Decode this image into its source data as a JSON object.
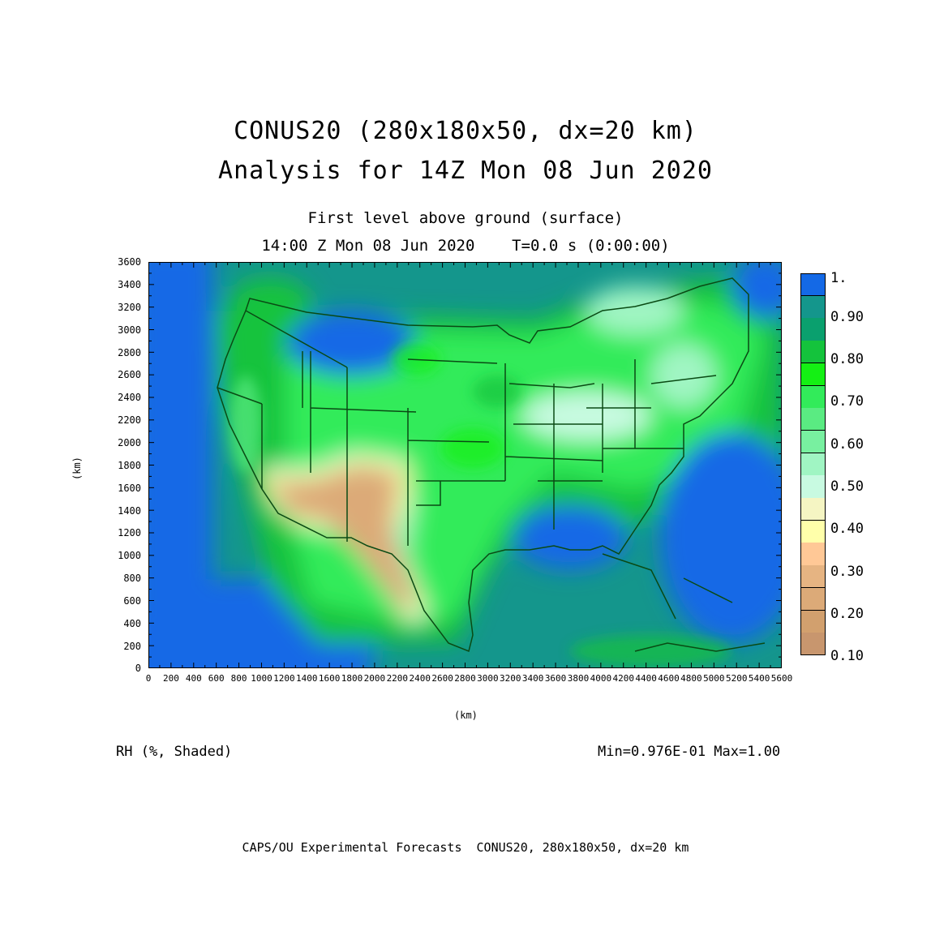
{
  "title_line1": "CONUS20 (280x180x50, dx=20 km)",
  "title_line2": "Analysis for 14Z Mon 08 Jun 2020",
  "subtitle_line1": "First level above ground (surface)",
  "subtitle_line2": "14:00 Z Mon 08 Jun 2020    T=0.0 s (0:00:00)",
  "axes": {
    "x_label": "(km)",
    "y_label": "(km)",
    "x_ticks": [
      "0",
      "200",
      "400",
      "600",
      "800",
      "1000",
      "1200",
      "1400",
      "1600",
      "1800",
      "2000",
      "2200",
      "2400",
      "2600",
      "2800",
      "3000",
      "3200",
      "3400",
      "3600",
      "3800",
      "4000",
      "4200",
      "4400",
      "4600",
      "4800",
      "5000",
      "5200",
      "5400",
      "5600"
    ],
    "y_ticks": [
      "0",
      "200",
      "400",
      "600",
      "800",
      "1000",
      "1200",
      "1400",
      "1600",
      "1800",
      "2000",
      "2200",
      "2400",
      "2600",
      "2800",
      "3000",
      "3200",
      "3400",
      "3600"
    ]
  },
  "colorbar": {
    "labels": [
      "1.",
      "0.90",
      "0.80",
      "0.70",
      "0.60",
      "0.50",
      "0.40",
      "0.30",
      "0.20",
      "0.10"
    ],
    "colors": [
      "#1469e6",
      "#14968c",
      "#0aa06e",
      "#14c33c",
      "#14f014",
      "#32eb5a",
      "#5aeb82",
      "#78f0a0",
      "#a0f5c3",
      "#c8fae1",
      "#f5f5c3",
      "#ffffaa",
      "#ffc896",
      "#e6b482",
      "#dcaa78",
      "#d2a06e",
      "#c8966e"
    ]
  },
  "field_label": "RH (%, Shaded)",
  "minmax": "Min=0.976E-01 Max=1.00",
  "footer": "CAPS/OU Experimental Forecasts  CONUS20, 280x180x50, dx=20 km"
}
